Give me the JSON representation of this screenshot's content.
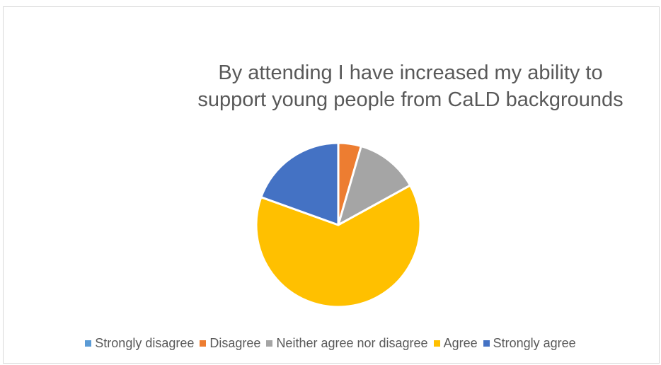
{
  "chart_data": {
    "type": "pie",
    "title_lines": [
      "By attending I have increased my ability to",
      "support young people from CaLD backgrounds"
    ],
    "categories": [
      "Strongly disagree",
      "Disagree",
      "Neither agree nor disagree",
      "Agree",
      "Strongly agree"
    ],
    "values": [
      0,
      4.5,
      12.5,
      63.5,
      19.5
    ],
    "colors": [
      "#5b9bd5",
      "#ed7d31",
      "#a5a5a5",
      "#ffc000",
      "#4472c4"
    ],
    "legend_position": "bottom",
    "start_angle": "12 o'clock",
    "direction": "clockwise"
  }
}
